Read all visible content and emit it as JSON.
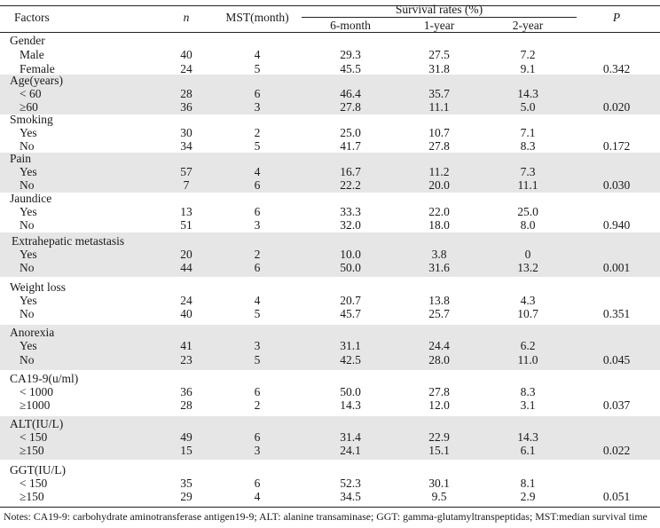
{
  "header": {
    "factors": "Factors",
    "n": "n",
    "mst": "MST(month)",
    "survival": "Survival rates (%)",
    "six_month": "6-month",
    "one_year": "1-year",
    "two_year": "2-year",
    "p": "P"
  },
  "groups": [
    {
      "title": "Gender",
      "shaded": false,
      "rows": [
        {
          "label": "Male",
          "n": "40",
          "mst": "4",
          "m6": "29.3",
          "y1": "27.5",
          "y2": "7.2"
        },
        {
          "label": "Female",
          "n": "24",
          "mst": "5",
          "m6": "45.5",
          "y1": "31.8",
          "y2": "9.1"
        }
      ],
      "p": "0.342"
    },
    {
      "title": "Age(years)",
      "shaded": true,
      "rows": [
        {
          "label": "< 60",
          "n": "28",
          "mst": "6",
          "m6": "46.4",
          "y1": "35.7",
          "y2": "14.3"
        },
        {
          "label": "≥60",
          "n": "36",
          "mst": "3",
          "m6": "27.8",
          "y1": "11.1",
          "y2": "5.0"
        }
      ],
      "p": "0.020"
    },
    {
      "title": "Smoking",
      "shaded": false,
      "rows": [
        {
          "label": "Yes",
          "n": "30",
          "mst": "2",
          "m6": "25.0",
          "y1": "10.7",
          "y2": "7.1"
        },
        {
          "label": "No",
          "n": "34",
          "mst": "5",
          "m6": "41.7",
          "y1": "27.8",
          "y2": "8.3"
        }
      ],
      "p": "0.172"
    },
    {
      "title": "Pain",
      "shaded": true,
      "rows": [
        {
          "label": "Yes",
          "n": "57",
          "mst": "4",
          "m6": "16.7",
          "y1": "11.2",
          "y2": "7.3"
        },
        {
          "label": "No",
          "n": "7",
          "mst": "6",
          "m6": "22.2",
          "y1": "20.0",
          "y2": "11.1"
        }
      ],
      "p": "0.030"
    },
    {
      "title": "Jaundice",
      "shaded": false,
      "rows": [
        {
          "label": "Yes",
          "n": "13",
          "mst": "6",
          "m6": "33.3",
          "y1": "22.0",
          "y2": "25.0"
        },
        {
          "label": "No",
          "n": "51",
          "mst": "3",
          "m6": "32.0",
          "y1": "18.0",
          "y2": "8.0"
        }
      ],
      "p": "0.940"
    },
    {
      "title": "Extrahepatic metastasis",
      "shaded": true,
      "rows": [
        {
          "label": "Yes",
          "n": "20",
          "mst": "2",
          "m6": "10.0",
          "y1": "3.8",
          "y2": "0"
        },
        {
          "label": "No",
          "n": "44",
          "mst": "6",
          "m6": "50.0",
          "y1": "31.6",
          "y2": "13.2"
        }
      ],
      "p": "0.001"
    },
    {
      "title": "Weight loss",
      "shaded": false,
      "rows": [
        {
          "label": "Yes",
          "n": "24",
          "mst": "4",
          "m6": "20.7",
          "y1": "13.8",
          "y2": "4.3"
        },
        {
          "label": "No",
          "n": "40",
          "mst": "5",
          "m6": "45.7",
          "y1": "25.7",
          "y2": "10.7"
        }
      ],
      "p": "0.351"
    },
    {
      "title": "Anorexia",
      "shaded": true,
      "rows": [
        {
          "label": "Yes",
          "n": "41",
          "mst": "3",
          "m6": "31.1",
          "y1": "24.4",
          "y2": "6.2"
        },
        {
          "label": "No",
          "n": "23",
          "mst": "5",
          "m6": "42.5",
          "y1": "28.0",
          "y2": "11.0"
        }
      ],
      "p": "0.045"
    },
    {
      "title": "CA19-9(u/ml)",
      "shaded": false,
      "rows": [
        {
          "label": "< 1000",
          "n": "36",
          "mst": "6",
          "m6": "50.0",
          "y1": "27.8",
          "y2": "8.3"
        },
        {
          "label": "≥1000",
          "n": "28",
          "mst": "2",
          "m6": "14.3",
          "y1": "12.0",
          "y2": "3.1"
        }
      ],
      "p": "0.037"
    },
    {
      "title": "ALT(IU/L)",
      "shaded": true,
      "rows": [
        {
          "label": "< 150",
          "n": "49",
          "mst": "6",
          "m6": "31.4",
          "y1": "22.9",
          "y2": "14.3"
        },
        {
          "label": "≥150",
          "n": "15",
          "mst": "3",
          "m6": "24.1",
          "y1": "15.1",
          "y2": "6.1"
        }
      ],
      "p": "0.022"
    },
    {
      "title": "GGT(IU/L)",
      "shaded": false,
      "rows": [
        {
          "label": "< 150",
          "n": "35",
          "mst": "6",
          "m6": "52.3",
          "y1": "30.1",
          "y2": "8.1"
        },
        {
          "label": "≥150",
          "n": "29",
          "mst": "4",
          "m6": "34.5",
          "y1": "9.5",
          "y2": "2.9"
        }
      ],
      "p": "0.051"
    }
  ],
  "notes": "Notes: CA19-9: carbohydrate aminotransferase antigen19-9; ALT: alanine transaminase; GGT: gamma-glutamyltranspeptidas; MST:median survival time",
  "colors": {
    "shade": "#e6e6e6",
    "rule": "#222222"
  }
}
